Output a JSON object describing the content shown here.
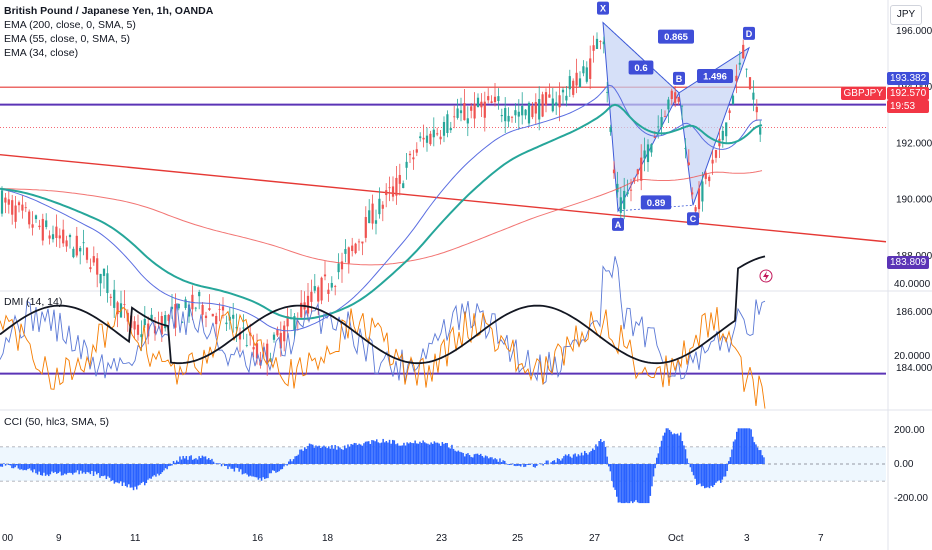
{
  "header": {
    "title": "British Pound / Japanese Yen, 1h, OANDA",
    "currency": "JPY"
  },
  "indicators": [
    {
      "label": "EMA (200, close, 0, SMA, 5)",
      "color": "#e57373"
    },
    {
      "label": "EMA (55, close, 0, SMA, 5)",
      "color": "#089981"
    },
    {
      "label": "EMA (34, close)",
      "color": "#5b6ee1"
    }
  ],
  "price_axis": {
    "ticks": [
      "196.000",
      "194.000",
      "192.000",
      "190.000",
      "188.000",
      "186.000",
      "184.000"
    ],
    "tick_values": [
      196,
      194,
      192,
      190,
      188,
      186,
      184
    ]
  },
  "price_tags": {
    "resistance": "193.382",
    "symbol": "GBPJPY",
    "last_price": "192.570",
    "countdown": "19:53",
    "support": "183.809"
  },
  "time_axis": {
    "labels": [
      "00",
      "9",
      "11",
      "16",
      "18",
      "23",
      "25",
      "27",
      "Oct",
      "3",
      "7"
    ]
  },
  "pattern": {
    "points": [
      {
        "label": "X",
        "price": 196.3
      },
      {
        "label": "A",
        "price": 189.6
      },
      {
        "label": "B",
        "price": 193.8
      },
      {
        "label": "C",
        "price": 189.8
      },
      {
        "label": "D",
        "price": 195.4
      }
    ],
    "ratios": [
      "0.6",
      "0.865",
      "1.496",
      "0.89"
    ]
  },
  "dmi": {
    "title": "DMI (14, 14)",
    "ticks": [
      "40.0000",
      "20.0000"
    ],
    "tick_values": [
      40,
      20
    ]
  },
  "cci": {
    "title": "CCI (50, hlc3, SMA, 5)",
    "ticks": [
      "200.00",
      "0.00",
      "-200.00"
    ],
    "tick_values": [
      200,
      0,
      -200
    ],
    "bands": [
      100,
      -100
    ]
  },
  "colors": {
    "candle_up": "#26a69a",
    "candle_down": "#ef5350",
    "horizontal_line": "#5b34b6",
    "trend_line": "#e53935",
    "resistance_line": "#e53935",
    "pattern_fill": "#c5d3f5",
    "pattern_stroke": "#3f5bd8",
    "tag_blue": "#3f4ed8",
    "tag_red": "#f23645",
    "tag_purple": "#5b34b6",
    "adx": "#131722",
    "di_plus": "#5b79d6",
    "di_minus": "#f57c00",
    "cci_fill": "#2962ff"
  }
}
